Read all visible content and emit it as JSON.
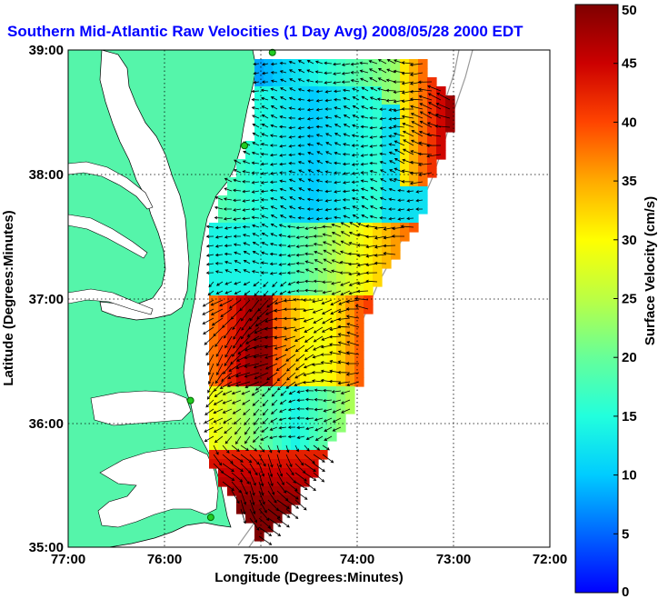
{
  "title": "Southern Mid-Atlantic Raw Velocities (1 Day Avg) 2008/05/28 2000 EDT",
  "x_axis": {
    "label": "Longitude (Degrees:Minutes)",
    "ticks": [
      "77:00",
      "76:00",
      "75:00",
      "74:00",
      "73:00",
      "72:00"
    ],
    "tick_values": [
      -77,
      -76,
      -75,
      -74,
      -73,
      -72
    ]
  },
  "y_axis": {
    "label": "Latitude (Degrees:Minutes)",
    "ticks": [
      "39:00",
      "38:00",
      "37:00",
      "36:00",
      "35:00"
    ],
    "tick_values": [
      39,
      38,
      37,
      36,
      35
    ]
  },
  "colorbar": {
    "label": "Surface Velocity (cm/s)",
    "ticks": [
      "50",
      "45",
      "40",
      "35",
      "30",
      "25",
      "20",
      "15",
      "10",
      "5",
      "0"
    ],
    "range": [
      0,
      50
    ],
    "colormap": "jet"
  },
  "map_extent": {
    "lon": [
      -77,
      -72
    ],
    "lat": [
      35,
      39
    ]
  },
  "colors": {
    "land": "#55f5aa",
    "water_inland": "#ffffff",
    "title": "#0000ff",
    "grid": "#000000",
    "stations": "#22cc22"
  },
  "stations": [
    {
      "name": "",
      "lon": -74.88,
      "lat": 38.98
    },
    {
      "name": "",
      "lon": -75.17,
      "lat": 38.23
    },
    {
      "name": "",
      "lon": -75.73,
      "lat": 36.18
    },
    {
      "name": "",
      "lon": -75.52,
      "lat": 35.24
    }
  ]
}
